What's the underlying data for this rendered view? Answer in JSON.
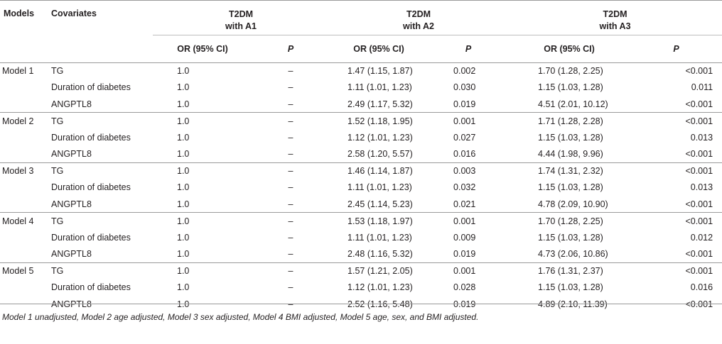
{
  "header": {
    "models": "Models",
    "covariates": "Covariates",
    "groups": [
      {
        "line1": "T2DM",
        "line2": "with A1"
      },
      {
        "line1": "T2DM",
        "line2": "with A2"
      },
      {
        "line1": "T2DM",
        "line2": "with A3"
      }
    ],
    "or_label": "OR (95% CI)",
    "p_label": "P"
  },
  "rows": [
    {
      "model": "Model 1",
      "covariate": "TG",
      "a1_or": "1.0",
      "a1_p": "–",
      "a2_or": "1.47 (1.15, 1.87)",
      "a2_p": "0.002",
      "a3_or": "1.70 (1.28, 2.25)",
      "a3_p": "<0.001"
    },
    {
      "model": "",
      "covariate": "Duration of diabetes",
      "a1_or": "1.0",
      "a1_p": "–",
      "a2_or": "1.11 (1.01, 1.23)",
      "a2_p": "0.030",
      "a3_or": "1.15 (1.03, 1.28)",
      "a3_p": "0.011"
    },
    {
      "model": "",
      "covariate": "ANGPTL8",
      "a1_or": "1.0",
      "a1_p": "–",
      "a2_or": "2.49 (1.17, 5.32)",
      "a2_p": "0.019",
      "a3_or": "4.51 (2.01, 10.12)",
      "a3_p": "<0.001"
    },
    {
      "model": "Model 2",
      "covariate": "TG",
      "a1_or": "1.0",
      "a1_p": "–",
      "a2_or": "1.52 (1.18, 1.95)",
      "a2_p": "0.001",
      "a3_or": "1.71 (1.28, 2.28)",
      "a3_p": "<0.001"
    },
    {
      "model": "",
      "covariate": "Duration of diabetes",
      "a1_or": "1.0",
      "a1_p": "–",
      "a2_or": "1.12 (1.01, 1.23)",
      "a2_p": "0.027",
      "a3_or": "1.15 (1.03, 1.28)",
      "a3_p": "0.013"
    },
    {
      "model": "",
      "covariate": "ANGPTL8",
      "a1_or": "1.0",
      "a1_p": "–",
      "a2_or": "2.58 (1.20, 5.57)",
      "a2_p": "0.016",
      "a3_or": "4.44 (1.98, 9.96)",
      "a3_p": "<0.001"
    },
    {
      "model": "Model 3",
      "covariate": "TG",
      "a1_or": "1.0",
      "a1_p": "–",
      "a2_or": "1.46 (1.14, 1.87)",
      "a2_p": "0.003",
      "a3_or": "1.74 (1.31, 2.32)",
      "a3_p": "<0.001"
    },
    {
      "model": "",
      "covariate": "Duration of diabetes",
      "a1_or": "1.0",
      "a1_p": "–",
      "a2_or": "1.11 (1.01, 1.23)",
      "a2_p": "0.032",
      "a3_or": "1.15 (1.03, 1.28)",
      "a3_p": "0.013"
    },
    {
      "model": "",
      "covariate": "ANGPTL8",
      "a1_or": "1.0",
      "a1_p": "–",
      "a2_or": "2.45 (1.14, 5.23)",
      "a2_p": "0.021",
      "a3_or": "4.78 (2.09, 10.90)",
      "a3_p": "<0.001"
    },
    {
      "model": "Model 4",
      "covariate": "TG",
      "a1_or": "1.0",
      "a1_p": "–",
      "a2_or": "1.53 (1.18, 1.97)",
      "a2_p": "0.001",
      "a3_or": "1.70 (1.28, 2.25)",
      "a3_p": "<0.001"
    },
    {
      "model": "",
      "covariate": "Duration of diabetes",
      "a1_or": "1.0",
      "a1_p": "–",
      "a2_or": "1.11 (1.01, 1.23)",
      "a2_p": "0.009",
      "a3_or": "1.15 (1.03, 1.28)",
      "a3_p": "0.012"
    },
    {
      "model": "",
      "covariate": "ANGPTL8",
      "a1_or": "1.0",
      "a1_p": "–",
      "a2_or": "2.48 (1.16, 5.32)",
      "a2_p": "0.019",
      "a3_or": "4.73 (2.06, 10.86)",
      "a3_p": "<0.001"
    },
    {
      "model": "Model 5",
      "covariate": "TG",
      "a1_or": "1.0",
      "a1_p": "–",
      "a2_or": "1.57 (1.21, 2.05)",
      "a2_p": "0.001",
      "a3_or": "1.76 (1.31, 2.37)",
      "a3_p": "<0.001"
    },
    {
      "model": "",
      "covariate": "Duration of diabetes",
      "a1_or": "1.0",
      "a1_p": "–",
      "a2_or": "1.12 (1.01, 1.23)",
      "a2_p": "0.028",
      "a3_or": "1.15 (1.03, 1.28)",
      "a3_p": "0.016"
    },
    {
      "model": "",
      "covariate": "ANGPTL8",
      "a1_or": "1.0",
      "a1_p": "–",
      "a2_or": "2.52 (1.16, 5.48)",
      "a2_p": "0.019",
      "a3_or": "4.89 (2.10, 11.39)",
      "a3_p": "<0.001"
    }
  ],
  "footnote": "Model 1 unadjusted, Model 2 age adjusted, Model 3 sex adjusted, Model 4 BMI adjusted, Model 5 age, sex, and BMI adjusted."
}
